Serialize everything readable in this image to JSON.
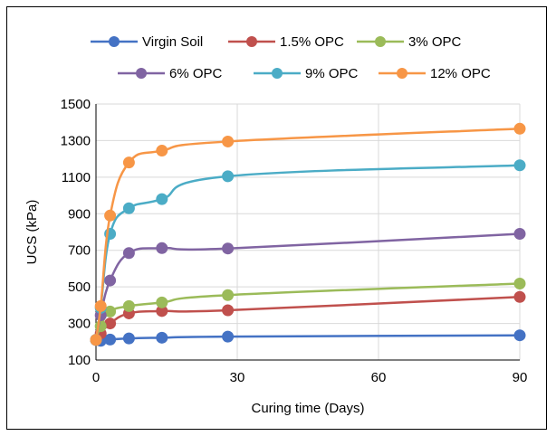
{
  "chart_data": {
    "type": "line",
    "title": "",
    "xlabel": "Curing time (Days)",
    "ylabel": "UCS (kPa)",
    "xlim": [
      0,
      90
    ],
    "ylim": [
      100,
      1500
    ],
    "xticks": [
      0,
      30,
      60,
      90
    ],
    "yticks": [
      100,
      300,
      500,
      700,
      900,
      1100,
      1300,
      1500
    ],
    "grid": true,
    "legend_position": "top",
    "x": [
      0,
      1,
      3,
      7,
      14,
      28,
      90
    ],
    "series": [
      {
        "name": "Virgin Soil",
        "color": "#4472C4",
        "values": [
          210,
          205,
          212,
          218,
          222,
          228,
          235
        ]
      },
      {
        "name": "1.5% OPC",
        "color": "#C0504D",
        "values": [
          210,
          245,
          300,
          355,
          368,
          372,
          445
        ]
      },
      {
        "name": "3% OPC",
        "color": "#9BBB59",
        "values": [
          210,
          285,
          365,
          395,
          415,
          455,
          518
        ]
      },
      {
        "name": "6% OPC",
        "color": "#8064A2",
        "values": [
          210,
          345,
          535,
          685,
          712,
          710,
          790
        ]
      },
      {
        "name": "9% OPC",
        "color": "#4BACC6",
        "values": [
          210,
          385,
          790,
          930,
          980,
          1105,
          1165
        ]
      },
      {
        "name": "12% OPC",
        "color": "#F79646",
        "values": [
          210,
          395,
          890,
          1180,
          1245,
          1295,
          1365
        ]
      }
    ]
  }
}
